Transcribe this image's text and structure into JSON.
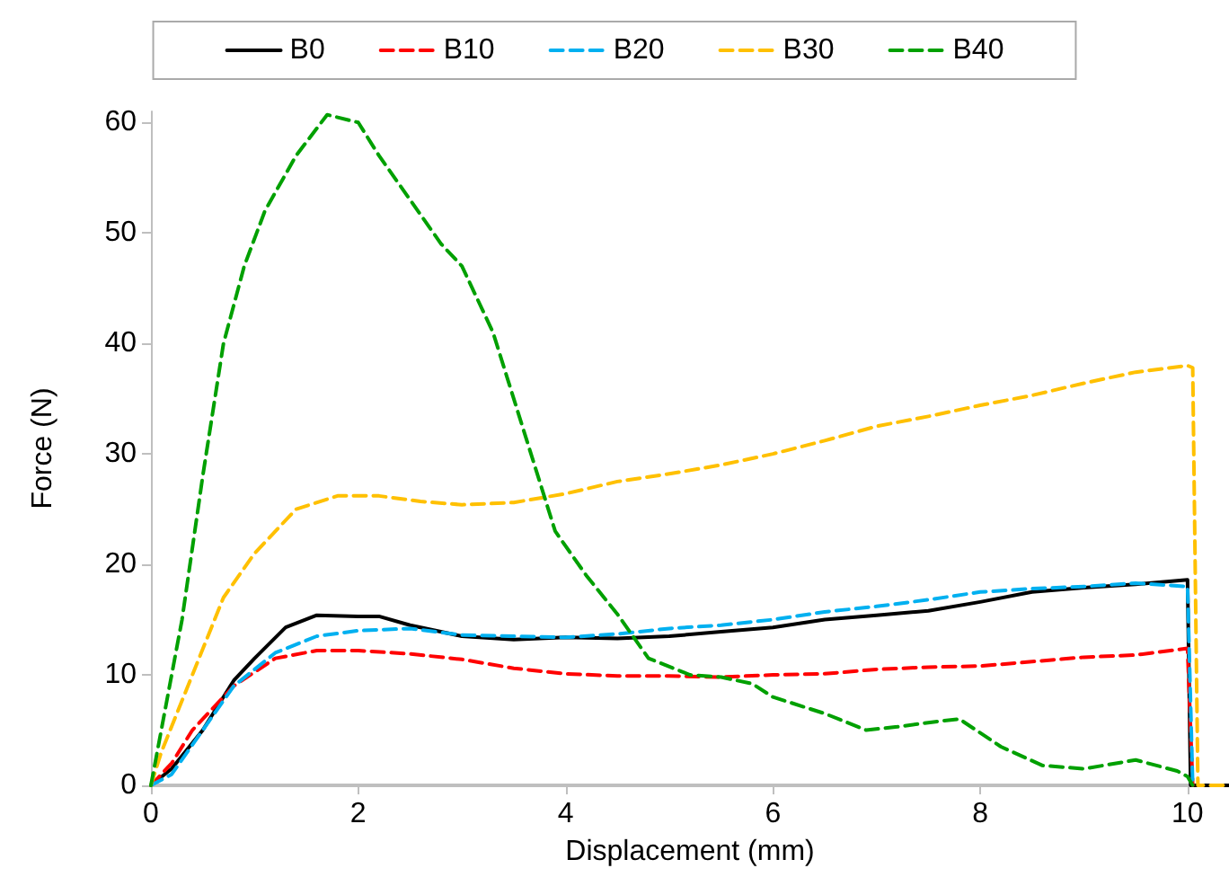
{
  "chart_data": {
    "type": "line",
    "xlabel": "Displacement (mm)",
    "ylabel": "Force (N)",
    "xlim": [
      0,
      10.4
    ],
    "xticks": [
      0,
      2,
      4,
      6,
      8,
      10
    ],
    "ylim": [
      0,
      61
    ],
    "yticks": [
      0,
      10,
      20,
      30,
      40,
      50,
      60
    ],
    "grid": false,
    "legend": "top",
    "marker": "none",
    "series": [
      {
        "name": "B0",
        "color": "#000000",
        "line_style": "solid",
        "x": [
          0,
          0.2,
          0.5,
          0.8,
          1,
          1.3,
          1.6,
          2,
          2.2,
          2.5,
          3,
          3.5,
          4,
          4.5,
          5,
          5.5,
          6,
          6.5,
          7,
          7.5,
          8,
          8.5,
          9,
          9.5,
          10,
          10.03,
          10.4
        ],
        "values": [
          0,
          1.5,
          5,
          9.5,
          11.5,
          14.3,
          15.4,
          15.3,
          15.3,
          14.5,
          13.5,
          13.2,
          13.4,
          13.3,
          13.5,
          13.9,
          14.3,
          15,
          15.4,
          15.8,
          16.6,
          17.5,
          17.9,
          18.2,
          18.6,
          0,
          0
        ]
      },
      {
        "name": "B10",
        "color": "#ff0000",
        "line_style": "dashed",
        "x": [
          0,
          0.2,
          0.4,
          0.8,
          1.2,
          1.6,
          2,
          2.5,
          3,
          3.5,
          4,
          4.5,
          5,
          5.5,
          6,
          6.5,
          7,
          7.5,
          8,
          8.5,
          9,
          9.5,
          10,
          10.05
        ],
        "values": [
          0,
          2,
          5,
          9,
          11.5,
          12.2,
          12.2,
          11.9,
          11.4,
          10.6,
          10.1,
          9.9,
          9.9,
          9.8,
          10,
          10.1,
          10.5,
          10.7,
          10.8,
          11.2,
          11.6,
          11.8,
          12.4,
          0
        ]
      },
      {
        "name": "B20",
        "color": "#00b0f0",
        "line_style": "dashed",
        "x": [
          0,
          0.2,
          0.5,
          0.8,
          1.2,
          1.6,
          2,
          2.5,
          3,
          3.5,
          4,
          4.5,
          5,
          5.5,
          6,
          6.5,
          7,
          7.5,
          8,
          8.5,
          9,
          9.5,
          10,
          10.05
        ],
        "values": [
          0,
          1,
          5,
          9,
          12,
          13.5,
          14,
          14.2,
          13.6,
          13.5,
          13.4,
          13.7,
          14.2,
          14.5,
          15,
          15.7,
          16.2,
          16.8,
          17.5,
          17.8,
          18,
          18.3,
          18,
          0
        ]
      },
      {
        "name": "B30",
        "color": "#ffc000",
        "line_style": "dashed",
        "x": [
          0,
          0.1,
          0.4,
          0.7,
          1,
          1.4,
          1.8,
          2.2,
          2.6,
          3,
          3.5,
          4,
          4.5,
          5,
          5.5,
          6,
          6.5,
          7,
          7.5,
          8,
          8.5,
          9,
          9.5,
          10,
          10.05,
          10.1,
          10.4
        ],
        "values": [
          0,
          3,
          10,
          17,
          21,
          25,
          26.2,
          26.2,
          25.7,
          25.4,
          25.6,
          26.4,
          27.5,
          28.2,
          29,
          30,
          31.2,
          32.5,
          33.4,
          34.4,
          35.3,
          36.4,
          37.4,
          38,
          37.8,
          0,
          0
        ]
      },
      {
        "name": "B40",
        "color": "#00a000",
        "line_style": "dashed",
        "x": [
          0,
          0.1,
          0.3,
          0.5,
          0.7,
          0.9,
          1.1,
          1.4,
          1.7,
          2,
          2.2,
          2.5,
          2.8,
          3,
          3.3,
          3.6,
          3.9,
          4.2,
          4.5,
          4.8,
          5.2,
          5.5,
          5.8,
          6,
          6.5,
          6.9,
          7.2,
          7.6,
          7.8,
          8.2,
          8.6,
          9,
          9.5,
          9.9,
          10,
          10.05
        ],
        "values": [
          0,
          5,
          15,
          28,
          40,
          47,
          52,
          57,
          60.7,
          60,
          57,
          53,
          49,
          47,
          41,
          32,
          23,
          19,
          15.5,
          11.5,
          10,
          9.8,
          9.2,
          8,
          6.5,
          5,
          5.3,
          5.8,
          6,
          3.5,
          1.8,
          1.5,
          2.3,
          1.3,
          0.8,
          0
        ]
      }
    ]
  }
}
